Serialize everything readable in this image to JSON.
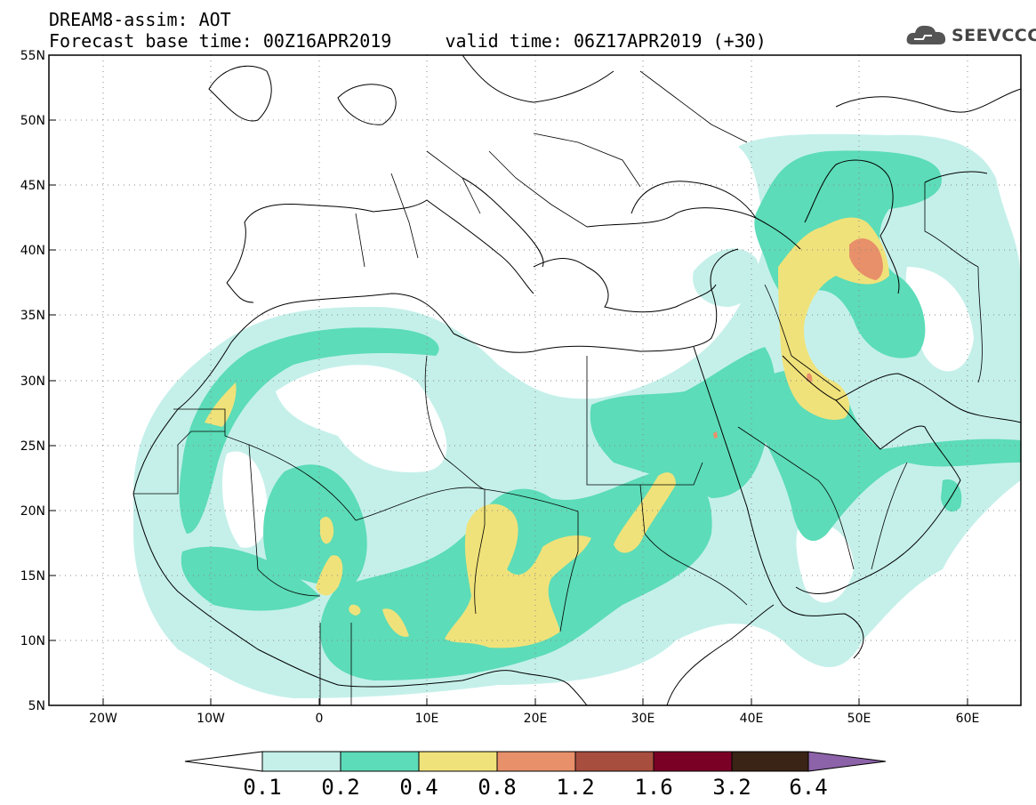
{
  "header": {
    "title_line1": "DREAM8-assim: AOT",
    "title_line2": "Forecast base time: 00Z16APR2019     valid time: 06Z17APR2019 (+30)",
    "logo_text": "SEEVCCC"
  },
  "map": {
    "lon_range": [
      -25,
      65
    ],
    "lat_range": [
      5,
      55
    ],
    "lat_ticks": [
      "55N",
      "50N",
      "45N",
      "40N",
      "35N",
      "30N",
      "25N",
      "20N",
      "15N",
      "10N",
      "5N"
    ],
    "lon_ticks": [
      "20W",
      "10W",
      "0",
      "10E",
      "20E",
      "30E",
      "40E",
      "50E",
      "60E"
    ],
    "grid": "dotted"
  },
  "legend": {
    "levels": [
      "0.1",
      "0.2",
      "0.4",
      "0.8",
      "1.2",
      "1.6",
      "3.2",
      "6.4"
    ],
    "colors": [
      "#ffffff",
      "#c5f0ea",
      "#5cdcb8",
      "#f0e27a",
      "#e8906a",
      "#a84e3e",
      "#7a0026",
      "#3a2416",
      "#8c62a8"
    ]
  }
}
